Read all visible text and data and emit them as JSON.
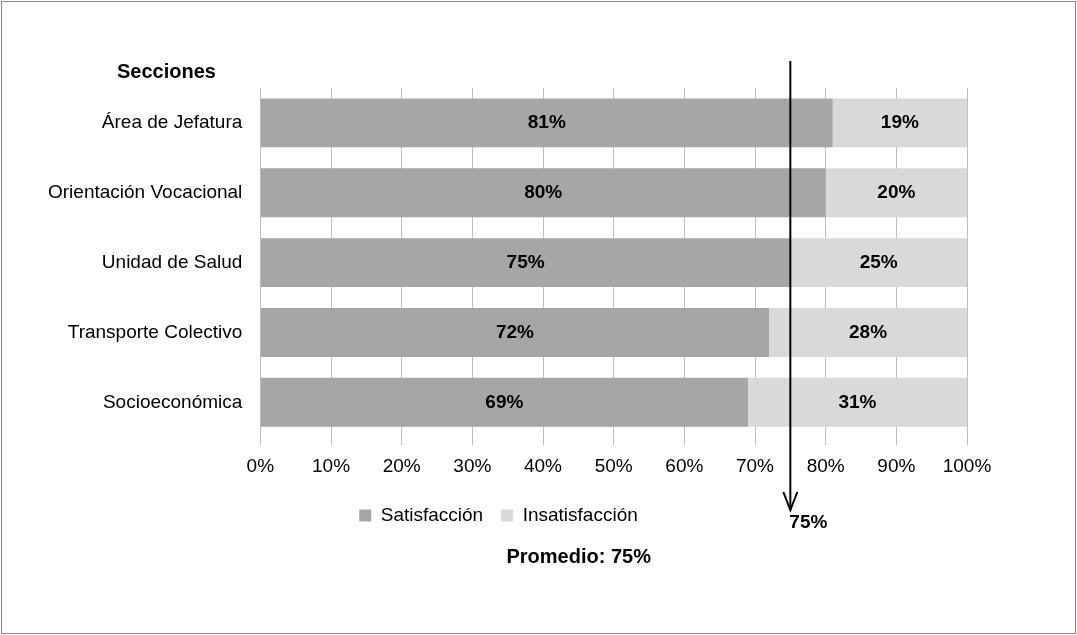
{
  "chart_data": {
    "type": "bar",
    "orientation": "horizontal",
    "stacked": true,
    "ylabel": "Secciones",
    "categories": [
      "Área de Jefatura",
      "Orientación Vocacional",
      "Unidad de Salud",
      "Transporte Colectivo",
      "Socioeconómica"
    ],
    "series": [
      {
        "name": "Satisfacción",
        "color": "#a6a6a6",
        "values": [
          81,
          80,
          75,
          72,
          69
        ],
        "value_labels": [
          "81%",
          "80%",
          "75%",
          "72%",
          "69%"
        ]
      },
      {
        "name": "Insatisfacción",
        "color": "#d9d9d9",
        "values": [
          19,
          20,
          25,
          28,
          31
        ],
        "value_labels": [
          "19%",
          "20%",
          "25%",
          "28%",
          "31%"
        ]
      }
    ],
    "xlim": [
      0,
      100
    ],
    "xticks": [
      {
        "value": 0,
        "label": "0%"
      },
      {
        "value": 10,
        "label": "10%"
      },
      {
        "value": 20,
        "label": "20%"
      },
      {
        "value": 30,
        "label": "30%"
      },
      {
        "value": 40,
        "label": "40%"
      },
      {
        "value": 50,
        "label": "50%"
      },
      {
        "value": 60,
        "label": "60%"
      },
      {
        "value": 70,
        "label": "70%"
      },
      {
        "value": 80,
        "label": "80%"
      },
      {
        "value": 90,
        "label": "90%"
      },
      {
        "value": 100,
        "label": "100%"
      }
    ],
    "grid": "x",
    "legend": "bottom",
    "ref_lines": [
      {
        "axis": "x",
        "value": 75,
        "label": "75%",
        "color": "#000000"
      }
    ],
    "annotations": [
      "Promedio: 75%"
    ]
  }
}
